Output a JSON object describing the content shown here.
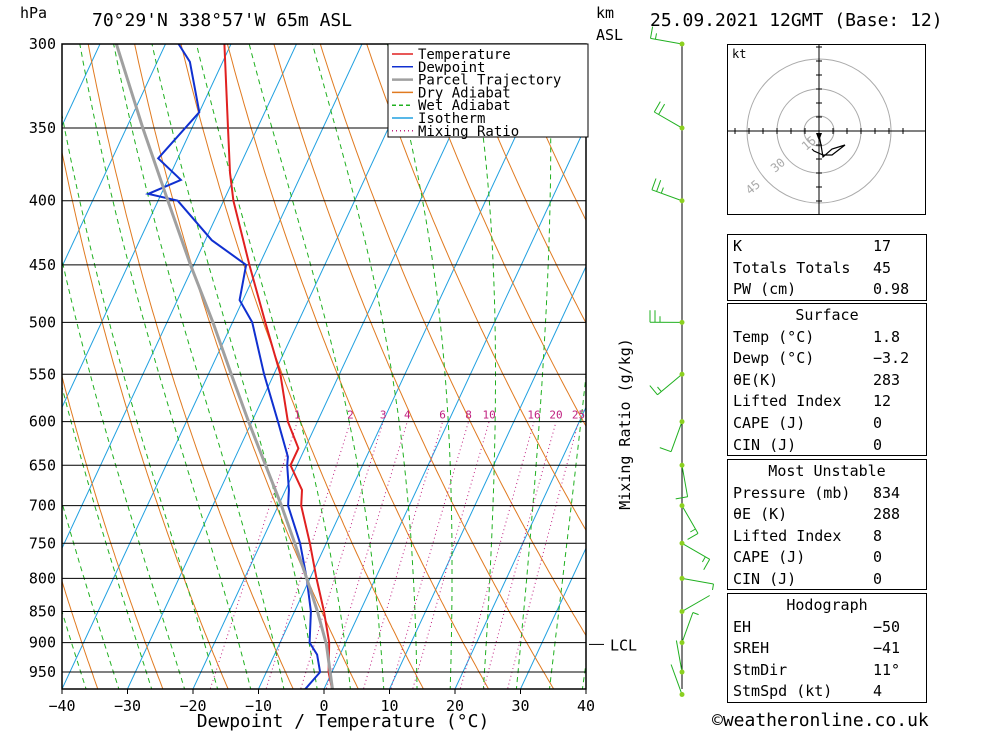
{
  "header": {
    "pressure_unit": "hPa",
    "location": "70°29'N  338°57'W  65m  ASL",
    "height_unit_line1": "km",
    "height_unit_line2": "ASL",
    "datetime": "25.09.2021  12GMT  (Base: 12)"
  },
  "footer": {
    "credit": "©weatheronline.co.uk"
  },
  "chart_data": {
    "type": "line",
    "title": "",
    "xlabel": "Dewpoint / Temperature (°C)",
    "ylabel": "hPa",
    "mixing_ratio_label": "Mixing Ratio (g/kg)",
    "xlim": [
      -40,
      40
    ],
    "ylim": [
      1000,
      300
    ],
    "x_ticks": [
      -40,
      -30,
      -20,
      -10,
      0,
      10,
      20,
      30,
      40
    ],
    "x_tick_labels": [
      "−40",
      "−30",
      "−20",
      "−10",
      "0",
      "10",
      "20",
      "30",
      "40"
    ],
    "pressure_levels": [
      300,
      350,
      400,
      450,
      500,
      550,
      600,
      650,
      700,
      750,
      800,
      850,
      900,
      950
    ],
    "mixing_ratio_values": [
      "1",
      "2",
      "3",
      "4",
      "6",
      "8",
      "10",
      "16",
      "20",
      "25"
    ],
    "lcl_label": "LCL",
    "lcl_pressure": 903,
    "legend": [
      {
        "name": "Temperature",
        "color": "#e02020",
        "style": "solid"
      },
      {
        "name": "Dewpoint",
        "color": "#1030d0",
        "style": "solid"
      },
      {
        "name": "Parcel Trajectory",
        "color": "#a0a0a0",
        "style": "solid"
      },
      {
        "name": "Dry Adiabat",
        "color": "#e07a20",
        "style": "solid"
      },
      {
        "name": "Wet Adiabat",
        "color": "#20b020",
        "style": "dashed"
      },
      {
        "name": "Isotherm",
        "color": "#20a0e0",
        "style": "solid"
      },
      {
        "name": "Mixing Ratio",
        "color": "#c02080",
        "style": "dotted"
      }
    ],
    "legend_position": "top-right",
    "series": [
      {
        "name": "Temperature",
        "color": "#e02020",
        "points": [
          [
            990,
            1.8
          ],
          [
            950,
            -0.5
          ],
          [
            900,
            -2.5
          ],
          [
            850,
            -5.5
          ],
          [
            800,
            -9.0
          ],
          [
            750,
            -12.5
          ],
          [
            700,
            -16.5
          ],
          [
            680,
            -17.5
          ],
          [
            650,
            -21.0
          ],
          [
            630,
            -21.0
          ],
          [
            600,
            -24.5
          ],
          [
            550,
            -29.0
          ],
          [
            500,
            -35.0
          ],
          [
            450,
            -41.5
          ],
          [
            400,
            -48.5
          ],
          [
            380,
            -51.0
          ],
          [
            350,
            -54.5
          ],
          [
            300,
            -61.0
          ]
        ]
      },
      {
        "name": "Dewpoint",
        "color": "#1030d0",
        "points": [
          [
            990,
            -3.2
          ],
          [
            950,
            -1.8
          ],
          [
            920,
            -3.5
          ],
          [
            900,
            -5.5
          ],
          [
            850,
            -7.5
          ],
          [
            800,
            -10.5
          ],
          [
            750,
            -14.0
          ],
          [
            700,
            -18.5
          ],
          [
            680,
            -19.5
          ],
          [
            650,
            -21.5
          ],
          [
            640,
            -22.0
          ],
          [
            600,
            -26.0
          ],
          [
            550,
            -31.5
          ],
          [
            500,
            -37.0
          ],
          [
            480,
            -40.5
          ],
          [
            450,
            -42.0
          ],
          [
            430,
            -49.0
          ],
          [
            400,
            -57.0
          ],
          [
            395,
            -62.0
          ],
          [
            385,
            -58.0
          ],
          [
            370,
            -63.0
          ],
          [
            340,
            -60.0
          ],
          [
            310,
            -65.0
          ],
          [
            300,
            -68.0
          ]
        ]
      },
      {
        "name": "Parcel Trajectory",
        "color": "#a0a0a0",
        "points": [
          [
            990,
            1.8
          ],
          [
            903,
            -2.8
          ],
          [
            850,
            -6.5
          ],
          [
            800,
            -10.5
          ],
          [
            750,
            -14.8
          ],
          [
            700,
            -19.5
          ],
          [
            650,
            -24.8
          ],
          [
            600,
            -30.5
          ],
          [
            550,
            -36.5
          ],
          [
            500,
            -43.0
          ],
          [
            450,
            -50.5
          ],
          [
            400,
            -58.5
          ],
          [
            350,
            -67.5
          ],
          [
            300,
            -77.5
          ]
        ]
      }
    ],
    "wind_barbs": [
      {
        "p": 990,
        "speed_kt": 2,
        "dir": 340
      },
      {
        "p": 950,
        "speed_kt": 3,
        "dir": 350
      },
      {
        "p": 900,
        "speed_kt": 5,
        "dir": 20
      },
      {
        "p": 850,
        "speed_kt": 4,
        "dir": 60
      },
      {
        "p": 800,
        "speed_kt": 6,
        "dir": 100
      },
      {
        "p": 750,
        "speed_kt": 15,
        "dir": 120
      },
      {
        "p": 700,
        "speed_kt": 15,
        "dir": 150
      },
      {
        "p": 650,
        "speed_kt": 10,
        "dir": 170
      },
      {
        "p": 600,
        "speed_kt": 10,
        "dir": 200
      },
      {
        "p": 550,
        "speed_kt": 15,
        "dir": 230
      },
      {
        "p": 500,
        "speed_kt": 25,
        "dir": 270
      },
      {
        "p": 400,
        "speed_kt": 25,
        "dir": 290
      },
      {
        "p": 350,
        "speed_kt": 20,
        "dir": 300
      },
      {
        "p": 300,
        "speed_kt": 15,
        "dir": 280
      }
    ]
  },
  "hodograph": {
    "unit": "kt",
    "ring_labels": [
      "15",
      "30",
      "45"
    ]
  },
  "indices": {
    "rows": [
      {
        "k": "K",
        "v": "17"
      },
      {
        "k": "Totals Totals",
        "v": "45"
      },
      {
        "k": "PW (cm)",
        "v": "0.98"
      }
    ]
  },
  "surface": {
    "title": "Surface",
    "rows": [
      {
        "k": "Temp (°C)",
        "v": "1.8"
      },
      {
        "k": "Dewp (°C)",
        "v": "−3.2"
      },
      {
        "k": "θE(K)",
        "v": "283"
      },
      {
        "k": "Lifted Index",
        "v": "12"
      },
      {
        "k": "CAPE (J)",
        "v": "0"
      },
      {
        "k": "CIN (J)",
        "v": "0"
      }
    ]
  },
  "most_unstable": {
    "title": "Most Unstable",
    "rows": [
      {
        "k": "Pressure (mb)",
        "v": "834"
      },
      {
        "k": "θE (K)",
        "v": "288"
      },
      {
        "k": "Lifted Index",
        "v": "8"
      },
      {
        "k": "CAPE (J)",
        "v": "0"
      },
      {
        "k": "CIN (J)",
        "v": "0"
      }
    ]
  },
  "hodograph_stats": {
    "title": "Hodograph",
    "rows": [
      {
        "k": "EH",
        "v": "−50"
      },
      {
        "k": "SREH",
        "v": "−41"
      },
      {
        "k": "StmDir",
        "v": "11°"
      },
      {
        "k": "StmSpd (kt)",
        "v": "4"
      }
    ]
  }
}
